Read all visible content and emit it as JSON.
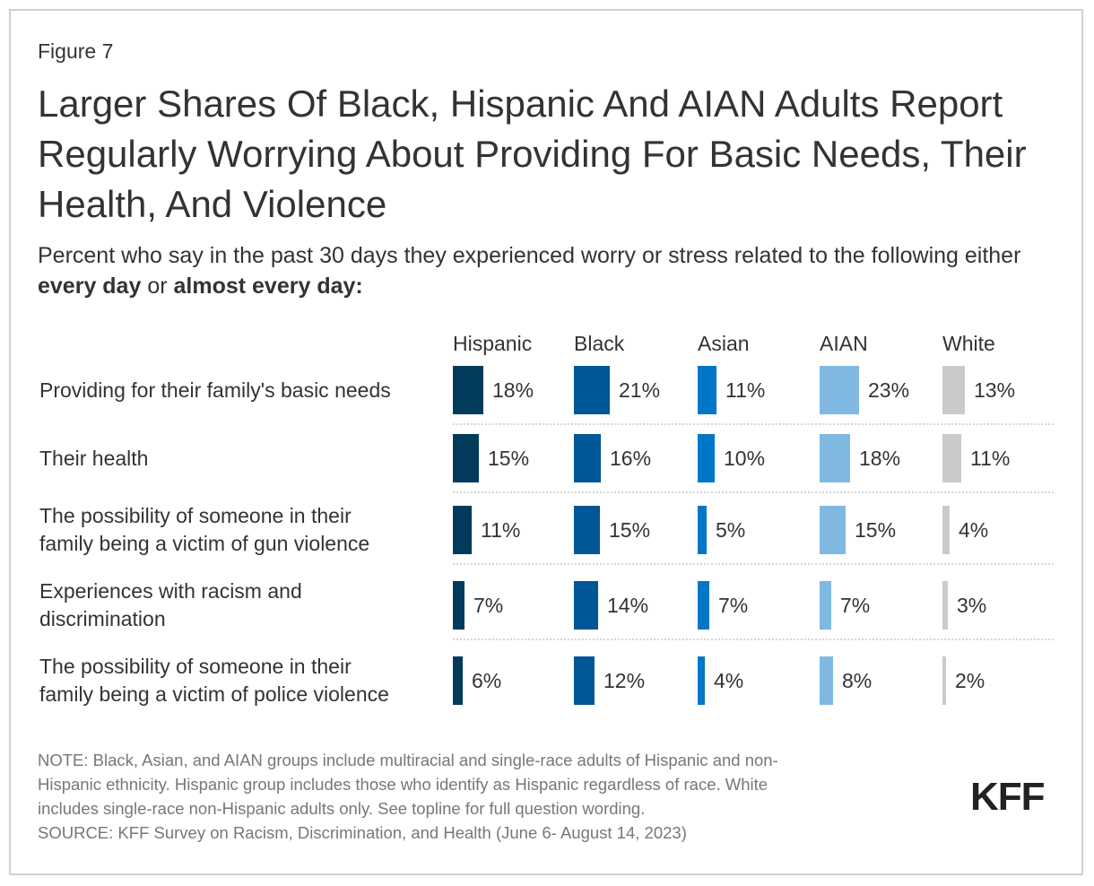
{
  "figure_label": "Figure 7",
  "title": "Larger Shares Of Black, Hispanic And AIAN Adults Report Regularly Worrying About Providing For Basic Needs, Their Health, And Violence",
  "subtitle": {
    "part1": "Percent who say in the past 30 days they experienced worry or stress related to the following either ",
    "bold1": "every day",
    "part2": " or ",
    "bold2": "almost every day:"
  },
  "chart_data": {
    "type": "bar",
    "orientation": "horizontal-small-multiples",
    "title": "Larger Shares Of Black, Hispanic And AIAN Adults Report Regularly Worrying About Providing For Basic Needs, Their Health, And Violence",
    "unit": "%",
    "categories": [
      "Providing for their family's basic needs",
      "Their health",
      "The possibility of someone in their family being a victim of gun violence",
      "Experiences with racism and discrimination",
      "The possibility of someone in their family being a victim of police violence"
    ],
    "category_lines": [
      [
        "Providing for their family's basic needs"
      ],
      [
        "Their health"
      ],
      [
        "The possibility of someone in their",
        "family being a victim of gun violence"
      ],
      [
        "Experiences with racism and",
        "discrimination"
      ],
      [
        "The possibility of someone in their",
        "family being a victim of police violence"
      ]
    ],
    "series": [
      {
        "name": "Hispanic",
        "color": "#033c5a",
        "values": [
          18,
          15,
          11,
          7,
          6
        ]
      },
      {
        "name": "Black",
        "color": "#005795",
        "values": [
          21,
          16,
          15,
          14,
          12
        ]
      },
      {
        "name": "Asian",
        "color": "#0077c8",
        "values": [
          11,
          10,
          5,
          7,
          4
        ]
      },
      {
        "name": "AIAN",
        "color": "#7fb9e1",
        "values": [
          23,
          18,
          15,
          7,
          8
        ]
      },
      {
        "name": "White",
        "color": "#cacaca",
        "values": [
          13,
          11,
          4,
          3,
          2
        ]
      }
    ],
    "grid": false,
    "legend": "column-headers-top"
  },
  "notes": [
    "NOTE: Black, Asian, and AIAN groups include multiracial and single-race adults of Hispanic and non-",
    "Hispanic ethnicity. Hispanic group includes those who identify as Hispanic regardless of race. White",
    "includes single-race non-Hispanic adults only. See topline for full question wording.",
    "SOURCE: KFF Survey on Racism, Discrimination, and Health (June 6- August 14, 2023)"
  ],
  "logo": "KFF"
}
